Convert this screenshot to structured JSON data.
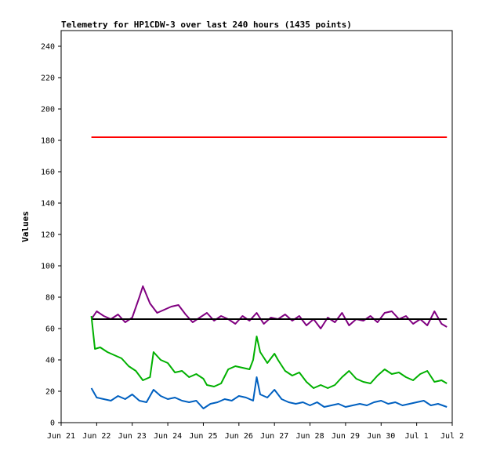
{
  "chart_data": {
    "type": "line",
    "title": "Telemetry for HP1CDW-3 over last 240 hours (1435 points)",
    "xlabel": "",
    "ylabel": "Values",
    "ylim": [
      0,
      250
    ],
    "yticks": [
      0,
      20,
      40,
      60,
      80,
      100,
      120,
      140,
      160,
      180,
      200,
      220,
      240
    ],
    "xlim": [
      "2024-06-21",
      "2024-07-02"
    ],
    "xticks": [
      "Jun 21",
      "Jun 22",
      "Jun 23",
      "Jun 24",
      "Jun 25",
      "Jun 26",
      "Jun 27",
      "Jun 28",
      "Jun 29",
      "Jun 30",
      "Jul 1",
      "Jul 2"
    ],
    "grid": false,
    "legend": "none",
    "series": [
      {
        "color": "#ff0000",
        "x": [
          21.85,
          22.5,
          23.0,
          23.5,
          24.0,
          24.5,
          25.0,
          25.5,
          26.0,
          26.5,
          27.0,
          27.5,
          28.0,
          28.5,
          29.0,
          29.5,
          30.0,
          30.5,
          31.0,
          31.5,
          31.85
        ],
        "values": [
          182,
          182,
          182,
          182,
          182,
          182,
          182,
          182,
          182,
          182,
          182,
          182,
          182,
          182,
          182,
          182,
          182,
          182,
          182,
          182,
          182
        ]
      },
      {
        "color": "#800080",
        "x": [
          21.85,
          22.0,
          22.2,
          22.4,
          22.6,
          22.8,
          23.0,
          23.2,
          23.3,
          23.5,
          23.7,
          23.9,
          24.1,
          24.3,
          24.5,
          24.7,
          24.9,
          25.1,
          25.3,
          25.5,
          25.7,
          25.9,
          26.1,
          26.3,
          26.5,
          26.7,
          26.9,
          27.1,
          27.3,
          27.5,
          27.7,
          27.9,
          28.1,
          28.3,
          28.5,
          28.7,
          28.9,
          29.1,
          29.3,
          29.5,
          29.7,
          29.9,
          30.1,
          30.3,
          30.5,
          30.7,
          30.9,
          31.1,
          31.3,
          31.5,
          31.7,
          31.85
        ],
        "values": [
          66,
          71,
          68,
          66,
          69,
          64,
          67,
          80,
          87,
          76,
          70,
          72,
          74,
          75,
          69,
          64,
          67,
          70,
          65,
          68,
          66,
          63,
          68,
          65,
          70,
          63,
          67,
          66,
          69,
          65,
          68,
          62,
          66,
          60,
          67,
          64,
          70,
          62,
          66,
          65,
          68,
          64,
          70,
          71,
          66,
          68,
          63,
          66,
          62,
          71,
          63,
          61
        ]
      },
      {
        "color": "#000000",
        "x": [
          21.85,
          31.85
        ],
        "values": [
          66,
          66
        ]
      },
      {
        "color": "#00b000",
        "x": [
          21.85,
          21.95,
          22.1,
          22.3,
          22.5,
          22.7,
          22.9,
          23.1,
          23.3,
          23.5,
          23.6,
          23.8,
          24.0,
          24.2,
          24.4,
          24.6,
          24.8,
          25.0,
          25.1,
          25.3,
          25.5,
          25.7,
          25.9,
          26.1,
          26.3,
          26.4,
          26.5,
          26.6,
          26.8,
          27.0,
          27.1,
          27.3,
          27.5,
          27.7,
          27.9,
          28.1,
          28.3,
          28.5,
          28.7,
          28.9,
          29.1,
          29.3,
          29.5,
          29.7,
          29.9,
          30.1,
          30.3,
          30.5,
          30.7,
          30.9,
          31.1,
          31.3,
          31.5,
          31.7,
          31.85
        ],
        "values": [
          68,
          47,
          48,
          45,
          43,
          41,
          36,
          33,
          27,
          29,
          45,
          40,
          38,
          32,
          33,
          29,
          31,
          28,
          24,
          23,
          25,
          34,
          36,
          35,
          34,
          40,
          55,
          45,
          38,
          44,
          40,
          33,
          30,
          32,
          26,
          22,
          24,
          22,
          24,
          29,
          33,
          28,
          26,
          25,
          30,
          34,
          31,
          32,
          29,
          27,
          31,
          33,
          26,
          27,
          25
        ]
      },
      {
        "color": "#0060c0",
        "x": [
          21.85,
          22.0,
          22.2,
          22.4,
          22.6,
          22.8,
          23.0,
          23.2,
          23.4,
          23.6,
          23.8,
          24.0,
          24.2,
          24.4,
          24.6,
          24.8,
          25.0,
          25.2,
          25.4,
          25.6,
          25.8,
          26.0,
          26.2,
          26.4,
          26.5,
          26.6,
          26.8,
          27.0,
          27.2,
          27.4,
          27.6,
          27.8,
          28.0,
          28.2,
          28.4,
          28.6,
          28.8,
          29.0,
          29.2,
          29.4,
          29.6,
          29.8,
          30.0,
          30.2,
          30.4,
          30.6,
          30.8,
          31.0,
          31.2,
          31.4,
          31.6,
          31.85
        ],
        "values": [
          22,
          16,
          15,
          14,
          17,
          15,
          18,
          14,
          13,
          21,
          17,
          15,
          16,
          14,
          13,
          14,
          9,
          12,
          13,
          15,
          14,
          17,
          16,
          14,
          29,
          18,
          16,
          21,
          15,
          13,
          12,
          13,
          11,
          13,
          10,
          11,
          12,
          10,
          11,
          12,
          11,
          13,
          14,
          12,
          13,
          11,
          12,
          13,
          14,
          11,
          12,
          10
        ]
      }
    ]
  }
}
